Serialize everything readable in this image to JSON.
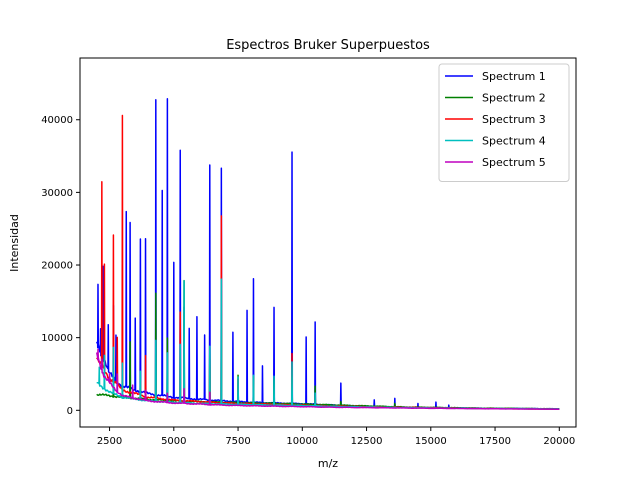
{
  "chart_data": {
    "type": "line",
    "title": "Espectros Bruker Superpuestos",
    "xlabel": "m/z",
    "ylabel": "Intensidad",
    "xlim": [
      1350,
      20650
    ],
    "ylim": [
      -2300,
      48500
    ],
    "xticks": [
      2500,
      5000,
      7500,
      10000,
      12500,
      15000,
      17500,
      20000
    ],
    "xtick_labels": [
      "2500",
      "5000",
      "7500",
      "10000",
      "12500",
      "15000",
      "17500",
      "20000"
    ],
    "yticks": [
      0,
      10000,
      20000,
      30000,
      40000
    ],
    "ytick_labels": [
      "0",
      "10000",
      "20000",
      "30000",
      "40000"
    ],
    "grid": false,
    "legend_position": "top-right",
    "series": [
      {
        "name": "Spectrum 1",
        "color": "#0000ff",
        "baseline": [
          [
            2000,
            9500
          ],
          [
            2500,
            5000
          ],
          [
            3000,
            3300
          ],
          [
            4000,
            2300
          ],
          [
            5000,
            1800
          ],
          [
            6000,
            1500
          ],
          [
            7000,
            1300
          ],
          [
            8000,
            1100
          ],
          [
            9000,
            1000
          ],
          [
            10000,
            900
          ],
          [
            11000,
            750
          ],
          [
            12000,
            600
          ],
          [
            13000,
            500
          ],
          [
            14000,
            400
          ],
          [
            15000,
            350
          ],
          [
            17000,
            280
          ],
          [
            20000,
            200
          ]
        ],
        "peaks": [
          [
            2050,
            16500
          ],
          [
            2150,
            10800
          ],
          [
            2250,
            19800
          ],
          [
            2450,
            12400
          ],
          [
            2650,
            14200
          ],
          [
            2750,
            10600
          ],
          [
            3150,
            27300
          ],
          [
            3300,
            27800
          ],
          [
            3500,
            12100
          ],
          [
            3700,
            22400
          ],
          [
            3900,
            25300
          ],
          [
            4300,
            39700
          ],
          [
            4550,
            29500
          ],
          [
            4750,
            45900
          ],
          [
            5000,
            20500
          ],
          [
            5250,
            37100
          ],
          [
            5400,
            14200
          ],
          [
            5600,
            11500
          ],
          [
            5900,
            12500
          ],
          [
            6200,
            10500
          ],
          [
            6400,
            34300
          ],
          [
            6850,
            34200
          ],
          [
            7300,
            10200
          ],
          [
            7850,
            13300
          ],
          [
            8100,
            18000
          ],
          [
            8450,
            6000
          ],
          [
            8900,
            14800
          ],
          [
            9600,
            34500
          ],
          [
            10150,
            9400
          ],
          [
            10500,
            13000
          ],
          [
            11500,
            3500
          ],
          [
            12800,
            1500
          ],
          [
            13600,
            1700
          ],
          [
            14500,
            900
          ],
          [
            15200,
            1100
          ],
          [
            15700,
            700
          ]
        ]
      },
      {
        "name": "Spectrum 2",
        "color": "#008000",
        "baseline": [
          [
            2000,
            2200
          ],
          [
            3000,
            1800
          ],
          [
            4000,
            1500
          ],
          [
            5000,
            1300
          ],
          [
            6000,
            1200
          ],
          [
            7000,
            1100
          ],
          [
            8000,
            1000
          ],
          [
            9000,
            950
          ],
          [
            10000,
            850
          ],
          [
            11000,
            750
          ],
          [
            12000,
            650
          ],
          [
            13000,
            550
          ],
          [
            14000,
            450
          ],
          [
            15000,
            400
          ],
          [
            17000,
            300
          ],
          [
            20000,
            200
          ]
        ],
        "peaks": [
          [
            2650,
            4000
          ],
          [
            3300,
            9000
          ],
          [
            4300,
            16000
          ],
          [
            4750,
            10000
          ],
          [
            5400,
            18200
          ],
          [
            6400,
            8500
          ],
          [
            6850,
            11000
          ],
          [
            7500,
            5000
          ],
          [
            8100,
            5000
          ],
          [
            8900,
            4600
          ],
          [
            9600,
            4800
          ],
          [
            10500,
            3200
          ],
          [
            11500,
            1200
          ],
          [
            13600,
            900
          ]
        ]
      },
      {
        "name": "Spectrum 3",
        "color": "#ff0000",
        "baseline": [
          [
            2000,
            7000
          ],
          [
            2500,
            4500
          ],
          [
            3000,
            2800
          ],
          [
            4000,
            1800
          ],
          [
            5000,
            1400
          ],
          [
            6000,
            1200
          ],
          [
            7000,
            1000
          ],
          [
            8000,
            900
          ],
          [
            9000,
            800
          ],
          [
            10000,
            700
          ],
          [
            11000,
            600
          ],
          [
            13000,
            450
          ],
          [
            15000,
            350
          ],
          [
            17000,
            250
          ],
          [
            20000,
            150
          ]
        ],
        "peaks": [
          [
            2200,
            31600
          ],
          [
            2300,
            20300
          ],
          [
            2650,
            24800
          ],
          [
            2800,
            10000
          ],
          [
            3000,
            41000
          ],
          [
            3700,
            4200
          ],
          [
            3900,
            7000
          ],
          [
            4300,
            4500
          ],
          [
            5250,
            13000
          ],
          [
            5400,
            9000
          ],
          [
            6400,
            7000
          ],
          [
            6850,
            26300
          ],
          [
            7500,
            4000
          ],
          [
            9600,
            8000
          ],
          [
            10500,
            2000
          ]
        ]
      },
      {
        "name": "Spectrum 4",
        "color": "#00bfbf",
        "baseline": [
          [
            2000,
            3800
          ],
          [
            2500,
            2500
          ],
          [
            3000,
            1800
          ],
          [
            4000,
            1300
          ],
          [
            5000,
            1100
          ],
          [
            6000,
            950
          ],
          [
            7000,
            850
          ],
          [
            8000,
            780
          ],
          [
            9000,
            700
          ],
          [
            10000,
            650
          ],
          [
            11000,
            550
          ],
          [
            13000,
            420
          ],
          [
            15000,
            320
          ],
          [
            17000,
            250
          ],
          [
            20000,
            180
          ]
        ],
        "peaks": [
          [
            2100,
            6000
          ],
          [
            2300,
            7000
          ],
          [
            2650,
            9000
          ],
          [
            3000,
            6500
          ],
          [
            3700,
            5000
          ],
          [
            4300,
            9500
          ],
          [
            4750,
            8000
          ],
          [
            5250,
            9000
          ],
          [
            5400,
            17500
          ],
          [
            6400,
            9000
          ],
          [
            6850,
            18700
          ],
          [
            7500,
            4500
          ],
          [
            8100,
            4500
          ],
          [
            8900,
            4500
          ],
          [
            9600,
            6500
          ],
          [
            10500,
            2500
          ]
        ]
      },
      {
        "name": "Spectrum 5",
        "color": "#bf00bf",
        "baseline": [
          [
            2000,
            8000
          ],
          [
            2300,
            4500
          ],
          [
            2700,
            3000
          ],
          [
            3000,
            2000
          ],
          [
            4000,
            1300
          ],
          [
            5000,
            1000
          ],
          [
            6000,
            850
          ],
          [
            7000,
            700
          ],
          [
            8000,
            620
          ],
          [
            9000,
            560
          ],
          [
            10000,
            500
          ],
          [
            11000,
            430
          ],
          [
            13000,
            350
          ],
          [
            15000,
            280
          ],
          [
            17000,
            220
          ],
          [
            20000,
            150
          ]
        ],
        "peaks": [
          [
            2050,
            8000
          ],
          [
            2200,
            7000
          ],
          [
            2500,
            5500
          ],
          [
            2800,
            5000
          ],
          [
            3400,
            3500
          ],
          [
            3900,
            3000
          ],
          [
            4750,
            2500
          ],
          [
            5400,
            3000
          ],
          [
            6400,
            2500
          ]
        ]
      }
    ]
  }
}
